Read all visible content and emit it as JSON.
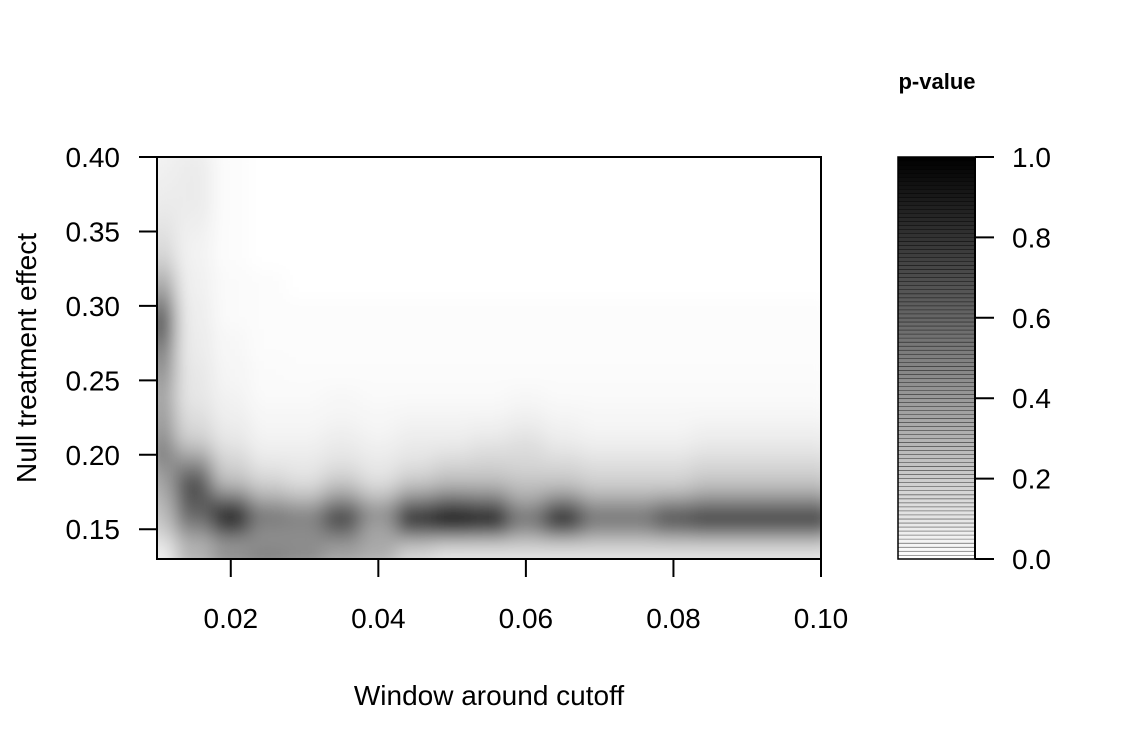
{
  "chart_data": {
    "type": "heatmap",
    "title": "",
    "xlabel": "Window around cutoff",
    "ylabel": "Null treatment effect",
    "xlim": [
      0.01,
      0.1
    ],
    "ylim": [
      0.13,
      0.4
    ],
    "x_ticks": [
      "0.02",
      "0.04",
      "0.06",
      "0.08",
      "0.10"
    ],
    "y_ticks": [
      "0.15",
      "0.20",
      "0.25",
      "0.30",
      "0.35",
      "0.40"
    ],
    "x": [
      0.01,
      0.015,
      0.02,
      0.025,
      0.03,
      0.035,
      0.04,
      0.045,
      0.05,
      0.055,
      0.06,
      0.065,
      0.07,
      0.075,
      0.08,
      0.085,
      0.09,
      0.095,
      0.1
    ],
    "y": [
      0.13,
      0.14,
      0.15,
      0.16,
      0.17,
      0.18,
      0.19,
      0.2,
      0.21,
      0.22,
      0.23,
      0.24,
      0.25,
      0.26,
      0.27,
      0.28,
      0.29,
      0.3,
      0.31,
      0.32,
      0.33,
      0.34,
      0.35,
      0.36,
      0.37,
      0.38,
      0.39,
      0.4
    ],
    "z_description_rows_by_y": [
      [
        0.05,
        0.3,
        0.45,
        0.5,
        0.45,
        0.35,
        0.3,
        0.15,
        0.1,
        0.1,
        0.1,
        0.1,
        0.1,
        0.1,
        0.1,
        0.1,
        0.1,
        0.1,
        0.1
      ],
      [
        0.1,
        0.3,
        0.4,
        0.45,
        0.45,
        0.4,
        0.35,
        0.25,
        0.2,
        0.2,
        0.2,
        0.2,
        0.2,
        0.2,
        0.2,
        0.2,
        0.2,
        0.2,
        0.2
      ],
      [
        0.2,
        0.45,
        0.7,
        0.45,
        0.45,
        0.6,
        0.35,
        0.65,
        0.75,
        0.7,
        0.45,
        0.65,
        0.45,
        0.45,
        0.55,
        0.6,
        0.6,
        0.6,
        0.6
      ],
      [
        0.25,
        0.6,
        0.9,
        0.55,
        0.5,
        0.75,
        0.45,
        0.85,
        0.95,
        0.9,
        0.55,
        0.85,
        0.55,
        0.55,
        0.7,
        0.75,
        0.75,
        0.75,
        0.75
      ],
      [
        0.3,
        0.65,
        0.6,
        0.35,
        0.3,
        0.45,
        0.3,
        0.5,
        0.6,
        0.55,
        0.35,
        0.5,
        0.35,
        0.35,
        0.4,
        0.45,
        0.45,
        0.45,
        0.45
      ],
      [
        0.35,
        0.7,
        0.3,
        0.2,
        0.15,
        0.25,
        0.15,
        0.25,
        0.3,
        0.3,
        0.25,
        0.25,
        0.2,
        0.2,
        0.2,
        0.25,
        0.25,
        0.25,
        0.25
      ],
      [
        0.4,
        0.55,
        0.2,
        0.12,
        0.1,
        0.15,
        0.1,
        0.15,
        0.2,
        0.2,
        0.18,
        0.18,
        0.15,
        0.15,
        0.15,
        0.18,
        0.18,
        0.18,
        0.18
      ],
      [
        0.5,
        0.35,
        0.15,
        0.08,
        0.08,
        0.1,
        0.08,
        0.1,
        0.12,
        0.15,
        0.15,
        0.12,
        0.1,
        0.1,
        0.1,
        0.12,
        0.12,
        0.12,
        0.12
      ],
      [
        0.45,
        0.2,
        0.1,
        0.05,
        0.05,
        0.08,
        0.05,
        0.08,
        0.08,
        0.1,
        0.12,
        0.08,
        0.06,
        0.06,
        0.06,
        0.08,
        0.08,
        0.08,
        0.08
      ],
      [
        0.4,
        0.15,
        0.08,
        0.04,
        0.04,
        0.05,
        0.04,
        0.05,
        0.05,
        0.06,
        0.08,
        0.05,
        0.04,
        0.04,
        0.04,
        0.05,
        0.05,
        0.05,
        0.05
      ],
      [
        0.38,
        0.12,
        0.06,
        0.03,
        0.03,
        0.04,
        0.03,
        0.04,
        0.04,
        0.04,
        0.05,
        0.04,
        0.03,
        0.03,
        0.03,
        0.03,
        0.03,
        0.03,
        0.03
      ],
      [
        0.36,
        0.1,
        0.05,
        0.02,
        0.02,
        0.03,
        0.02,
        0.02,
        0.02,
        0.02,
        0.03,
        0.02,
        0.02,
        0.02,
        0.02,
        0.02,
        0.02,
        0.02,
        0.02
      ],
      [
        0.4,
        0.1,
        0.04,
        0.02,
        0.02,
        0.02,
        0.02,
        0.02,
        0.02,
        0.02,
        0.02,
        0.02,
        0.02,
        0.02,
        0.02,
        0.02,
        0.02,
        0.02,
        0.02
      ],
      [
        0.45,
        0.09,
        0.04,
        0.02,
        0.01,
        0.01,
        0.01,
        0.01,
        0.01,
        0.01,
        0.01,
        0.01,
        0.01,
        0.01,
        0.01,
        0.01,
        0.01,
        0.01,
        0.01
      ],
      [
        0.5,
        0.08,
        0.03,
        0.01,
        0.01,
        0.01,
        0.01,
        0.01,
        0.01,
        0.01,
        0.01,
        0.01,
        0.01,
        0.01,
        0.01,
        0.01,
        0.01,
        0.01,
        0.01
      ],
      [
        0.6,
        0.08,
        0.03,
        0.01,
        0.01,
        0.01,
        0.01,
        0.01,
        0.01,
        0.01,
        0.01,
        0.01,
        0.01,
        0.01,
        0.01,
        0.01,
        0.01,
        0.01,
        0.01
      ],
      [
        0.65,
        0.07,
        0.02,
        0.01,
        0.01,
        0.01,
        0.01,
        0.01,
        0.01,
        0.01,
        0.01,
        0.01,
        0.01,
        0.01,
        0.01,
        0.01,
        0.01,
        0.01,
        0.01
      ],
      [
        0.55,
        0.07,
        0.02,
        0.01,
        0.01,
        0.01,
        0.01,
        0.01,
        0.01,
        0.01,
        0.01,
        0.01,
        0.01,
        0.01,
        0.01,
        0.01,
        0.01,
        0.01,
        0.01
      ],
      [
        0.4,
        0.06,
        0.02,
        0.01,
        0.0,
        0.0,
        0.0,
        0.0,
        0.0,
        0.0,
        0.0,
        0.0,
        0.0,
        0.0,
        0.0,
        0.0,
        0.0,
        0.0,
        0.0
      ],
      [
        0.3,
        0.06,
        0.02,
        0.01,
        0.0,
        0.0,
        0.0,
        0.0,
        0.0,
        0.0,
        0.0,
        0.0,
        0.0,
        0.0,
        0.0,
        0.0,
        0.0,
        0.0,
        0.0
      ],
      [
        0.2,
        0.05,
        0.01,
        0.0,
        0.0,
        0.0,
        0.0,
        0.0,
        0.0,
        0.0,
        0.0,
        0.0,
        0.0,
        0.0,
        0.0,
        0.0,
        0.0,
        0.0,
        0.0
      ],
      [
        0.15,
        0.05,
        0.01,
        0.0,
        0.0,
        0.0,
        0.0,
        0.0,
        0.0,
        0.0,
        0.0,
        0.0,
        0.0,
        0.0,
        0.0,
        0.0,
        0.0,
        0.0,
        0.0
      ],
      [
        0.12,
        0.06,
        0.01,
        0.0,
        0.0,
        0.0,
        0.0,
        0.0,
        0.0,
        0.0,
        0.0,
        0.0,
        0.0,
        0.0,
        0.0,
        0.0,
        0.0,
        0.0,
        0.0
      ],
      [
        0.1,
        0.07,
        0.01,
        0.0,
        0.0,
        0.0,
        0.0,
        0.0,
        0.0,
        0.0,
        0.0,
        0.0,
        0.0,
        0.0,
        0.0,
        0.0,
        0.0,
        0.0,
        0.0
      ],
      [
        0.08,
        0.08,
        0.01,
        0.0,
        0.0,
        0.0,
        0.0,
        0.0,
        0.0,
        0.0,
        0.0,
        0.0,
        0.0,
        0.0,
        0.0,
        0.0,
        0.0,
        0.0,
        0.0
      ],
      [
        0.07,
        0.08,
        0.01,
        0.0,
        0.0,
        0.0,
        0.0,
        0.0,
        0.0,
        0.0,
        0.0,
        0.0,
        0.0,
        0.0,
        0.0,
        0.0,
        0.0,
        0.0,
        0.0
      ],
      [
        0.06,
        0.08,
        0.01,
        0.0,
        0.0,
        0.0,
        0.0,
        0.0,
        0.0,
        0.0,
        0.0,
        0.0,
        0.0,
        0.0,
        0.0,
        0.0,
        0.0,
        0.0,
        0.0
      ],
      [
        0.05,
        0.07,
        0.01,
        0.0,
        0.0,
        0.0,
        0.0,
        0.0,
        0.0,
        0.0,
        0.0,
        0.0,
        0.0,
        0.0,
        0.0,
        0.0,
        0.0,
        0.0,
        0.0
      ]
    ],
    "colorscale": {
      "low": "#ffffff",
      "high": "#000000"
    },
    "legend": {
      "title": "p-value",
      "ticks": [
        "0.0",
        "0.2",
        "0.4",
        "0.6",
        "0.8",
        "1.0"
      ],
      "range": [
        0.0,
        1.0
      ],
      "placement": "right"
    },
    "grid": false
  }
}
